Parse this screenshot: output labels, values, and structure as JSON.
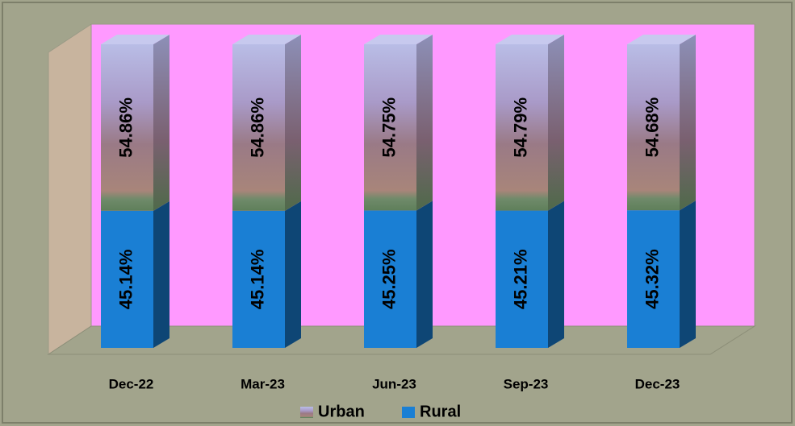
{
  "chart_data": {
    "type": "bar",
    "stacked": true,
    "categories": [
      "Dec-22",
      "Mar-23",
      "Jun-23",
      "Sep-23",
      "Dec-23"
    ],
    "series": [
      {
        "name": "Urban",
        "values": [
          54.86,
          54.86,
          54.75,
          54.79,
          54.68
        ],
        "value_labels": [
          "54.86%",
          "54.86%",
          "54.75%",
          "54.79%",
          "54.68%"
        ]
      },
      {
        "name": "Rural",
        "color": "#1a7fd4",
        "values": [
          45.14,
          45.14,
          45.25,
          45.21,
          45.32
        ],
        "value_labels": [
          "45.14%",
          "45.14%",
          "45.25%",
          "45.21%",
          "45.32%"
        ]
      }
    ]
  }
}
